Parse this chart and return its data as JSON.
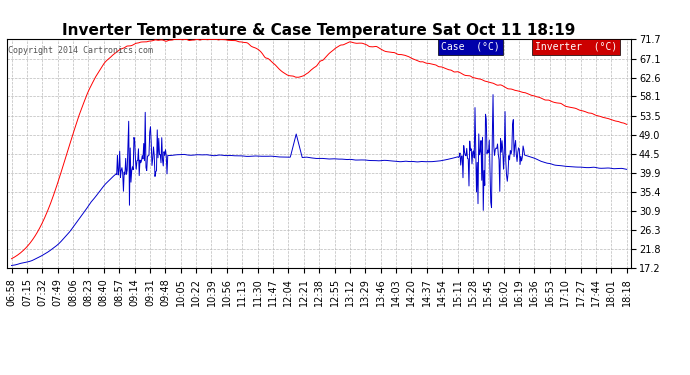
{
  "title": "Inverter Temperature & Case Temperature Sat Oct 11 18:19",
  "copyright": "Copyright 2014 Cartronics.com",
  "yticks": [
    17.2,
    21.8,
    26.3,
    30.9,
    35.4,
    39.9,
    44.5,
    49.0,
    53.5,
    58.1,
    62.6,
    67.1,
    71.7
  ],
  "xtick_labels": [
    "06:58",
    "07:15",
    "07:32",
    "07:49",
    "08:06",
    "08:23",
    "08:40",
    "08:57",
    "09:14",
    "09:31",
    "09:48",
    "10:05",
    "10:22",
    "10:39",
    "10:56",
    "11:13",
    "11:30",
    "11:47",
    "12:04",
    "12:21",
    "12:38",
    "12:55",
    "13:12",
    "13:29",
    "13:46",
    "14:03",
    "14:20",
    "14:37",
    "14:54",
    "15:11",
    "15:28",
    "15:45",
    "16:02",
    "16:19",
    "16:36",
    "16:53",
    "17:10",
    "17:27",
    "17:44",
    "18:01",
    "18:18"
  ],
  "case_color": "#ff0000",
  "inverter_color": "#0000cc",
  "bg_color": "#ffffff",
  "grid_color": "#bbbbbb",
  "legend_case_bg": "#0000aa",
  "legend_inv_bg": "#cc0000",
  "legend_text_color": "#ffffff",
  "title_fontsize": 11,
  "tick_fontsize": 7,
  "ymin": 17.2,
  "ymax": 71.7
}
